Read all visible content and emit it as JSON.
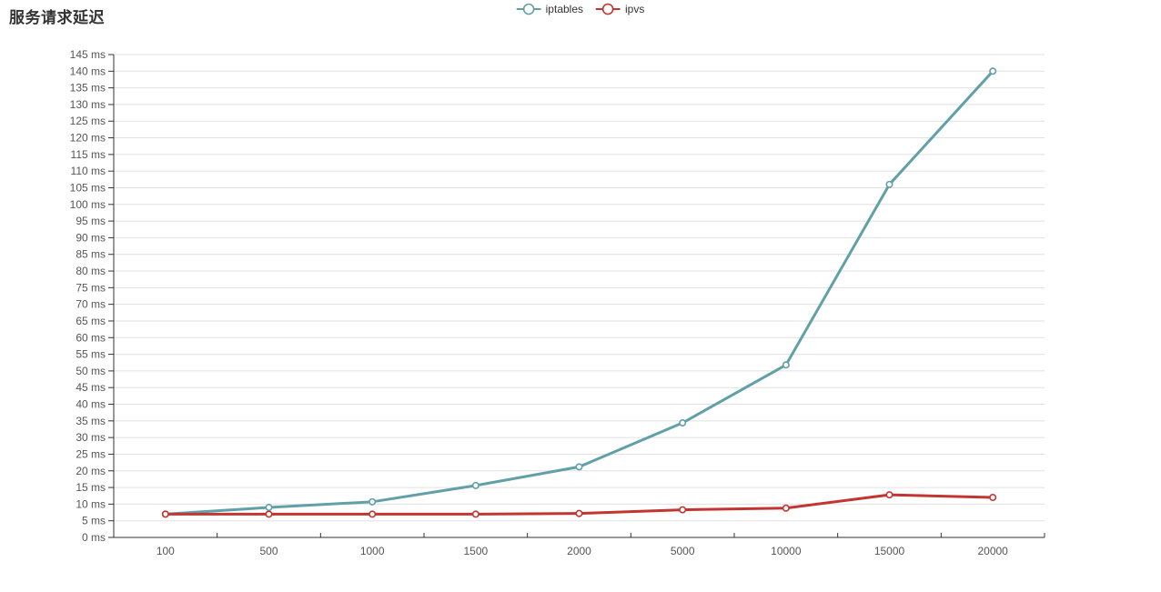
{
  "title": "服务请求延迟",
  "colors": {
    "background": "#ffffff",
    "title_text": "#333333",
    "axis_line": "#333333",
    "axis_text": "#555555",
    "grid_line": "#e1e1e1",
    "iptables_series": "#61a0a8",
    "ipvs_series": "#c23531"
  },
  "chart_data": {
    "type": "line",
    "title": "服务请求延迟",
    "xlabel": "",
    "ylabel": "",
    "categories": [
      "100",
      "500",
      "1000",
      "1500",
      "2000",
      "5000",
      "10000",
      "15000",
      "20000"
    ],
    "series": [
      {
        "name": "iptables",
        "color": "#61a0a8",
        "values": [
          7,
          9,
          10.7,
          15.6,
          21.2,
          34.4,
          51.8,
          106,
          140
        ]
      },
      {
        "name": "ipvs",
        "color": "#c23531",
        "values": [
          7,
          7,
          7,
          7,
          7.2,
          8.3,
          8.8,
          12.8,
          12
        ]
      }
    ],
    "y_axis": {
      "min": 0,
      "max": 145,
      "step": 5,
      "unit": " ms"
    },
    "ylim": [
      0,
      145
    ],
    "grid": "horizontal-only",
    "legend_position": "top-center",
    "marker": "hollow-circle"
  }
}
